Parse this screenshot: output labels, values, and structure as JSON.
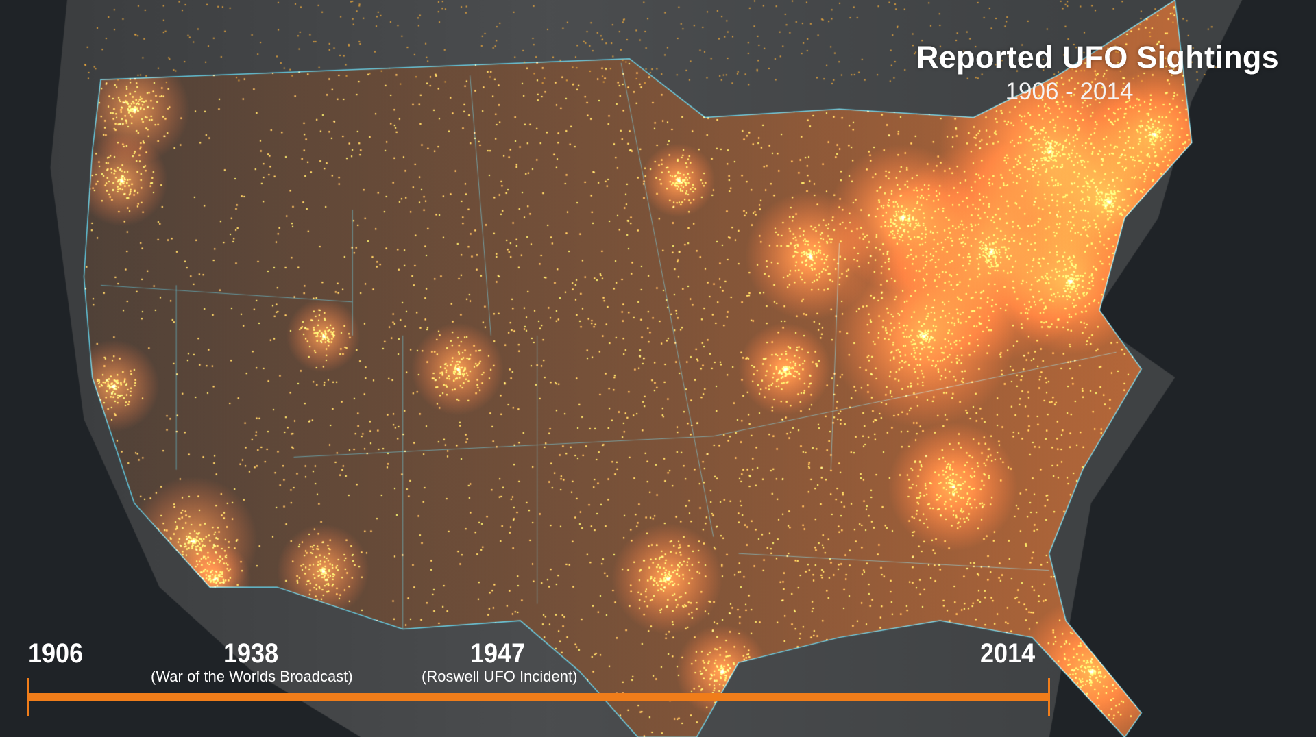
{
  "title": "Reported UFO Sightings",
  "subtitle": "1906 - 2014",
  "timeline": {
    "start": {
      "year": "1906"
    },
    "events": [
      {
        "year": "1938",
        "label": "(War of the Worlds Broadcast)"
      },
      {
        "year": "1947",
        "label": "(Roswell UFO Incident)"
      }
    ],
    "end": {
      "year": "2014"
    },
    "progress": 1.0,
    "color": "#f07d1a"
  },
  "map": {
    "region": "Contiguous United States",
    "dot_color": "#ffb43a",
    "border_color": "#5fc8e0",
    "ocean_color": "#1f2327",
    "land_color": "#4a4c4e"
  }
}
